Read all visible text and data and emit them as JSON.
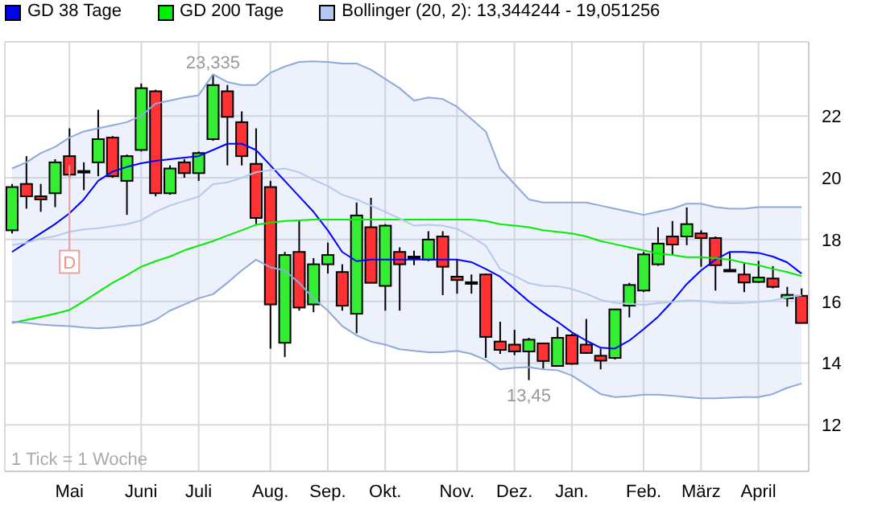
{
  "chart_data": {
    "type": "candlestick",
    "categories": [
      null,
      null,
      null,
      null,
      "Mai",
      null,
      null,
      null,
      null,
      "Juni",
      null,
      null,
      null,
      "Juli",
      null,
      null,
      null,
      null,
      "Aug.",
      null,
      null,
      null,
      "Sep.",
      null,
      null,
      null,
      "Okt.",
      null,
      null,
      null,
      null,
      "Nov.",
      null,
      null,
      null,
      "Dez.",
      null,
      null,
      null,
      "Jan.",
      null,
      null,
      null,
      null,
      "Feb.",
      null,
      null,
      null,
      "März",
      null,
      null,
      null,
      "April",
      null,
      null,
      null
    ],
    "series": [
      {
        "type": "candlestick",
        "colors": [
          "#33ee33",
          "#ff3333",
          "#ff3333",
          "#33ee33",
          "#ff3333",
          "#ff3333",
          "#33ee33",
          "#ff3333",
          "#33ee33",
          "#33ee33",
          "#ff3333",
          "#33ee33",
          "#ff3333",
          "#33ee33",
          "#33ee33",
          "#ff3333",
          "#ff3333",
          "#ff3333",
          "#ff3333",
          "#33ee33",
          "#ff3333",
          "#33ee33",
          "#33ee33",
          "#ff3333",
          "#33ee33",
          "#ff3333",
          "#33ee33",
          "#ff3333",
          "#ff3333",
          "#33ee33",
          "#ff3333",
          "#ff3333",
          "#ff3333",
          "#ff3333",
          "#ff3333",
          "#ff3333",
          "#33ee33",
          "#ff3333",
          "#33ee33",
          "#ff3333",
          "#ff3333",
          "#ff3333",
          "#33ee33",
          "#33ee33",
          "#33ee33",
          "#33ee33",
          "#ff3333",
          "#33ee33",
          "#ff3333",
          "#ff3333",
          "#ff3333",
          "#ff3333",
          "#33ee33",
          "#ff3333",
          "#33ee33",
          "#ff3333"
        ],
        "ohlc": [
          [
            18.3,
            19.8,
            18.2,
            19.7
          ],
          [
            19.8,
            20.7,
            19.0,
            19.4
          ],
          [
            19.4,
            19.8,
            18.9,
            19.3
          ],
          [
            19.5,
            20.6,
            19.05,
            20.5
          ],
          [
            20.7,
            21.6,
            20.0,
            20.1
          ],
          [
            20.22,
            20.5,
            19.6,
            20.2
          ],
          [
            20.5,
            22.2,
            20.05,
            21.25
          ],
          [
            21.3,
            21.35,
            20.0,
            20.05
          ],
          [
            19.9,
            20.75,
            18.8,
            20.7
          ],
          [
            20.9,
            23.05,
            20.85,
            22.9
          ],
          [
            22.8,
            22.85,
            19.4,
            19.5
          ],
          [
            19.5,
            20.4,
            19.45,
            20.3
          ],
          [
            20.5,
            20.6,
            20.0,
            20.15
          ],
          [
            20.15,
            20.85,
            19.9,
            20.8
          ],
          [
            21.25,
            23.335,
            21.2,
            23.0
          ],
          [
            22.8,
            23.0,
            20.4,
            21.97
          ],
          [
            21.8,
            22.15,
            20.4,
            20.7
          ],
          [
            20.45,
            21.6,
            18.5,
            18.7
          ],
          [
            19.7,
            19.9,
            14.47,
            15.9
          ],
          [
            14.66,
            17.6,
            14.2,
            17.5
          ],
          [
            17.6,
            18.6,
            15.7,
            15.8
          ],
          [
            15.9,
            17.4,
            15.65,
            17.2
          ],
          [
            17.2,
            17.9,
            16.9,
            17.5
          ],
          [
            16.95,
            17.2,
            15.7,
            15.86
          ],
          [
            15.6,
            19.2,
            14.97,
            18.78
          ],
          [
            18.4,
            19.35,
            16.6,
            16.6
          ],
          [
            16.5,
            18.5,
            15.7,
            18.45
          ],
          [
            17.6,
            17.75,
            15.7,
            17.2
          ],
          [
            17.45,
            17.64,
            17.17,
            17.4
          ],
          [
            17.35,
            18.27,
            17.3,
            18.0
          ],
          [
            18.1,
            18.27,
            16.2,
            17.12
          ],
          [
            16.8,
            17.35,
            16.25,
            16.69
          ],
          [
            16.62,
            16.87,
            16.25,
            16.6
          ],
          [
            16.87,
            16.9,
            14.17,
            14.85
          ],
          [
            14.7,
            15.34,
            14.3,
            14.43
          ],
          [
            14.6,
            15.08,
            14.26,
            14.38
          ],
          [
            14.38,
            14.82,
            13.45,
            14.76
          ],
          [
            14.64,
            14.65,
            13.82,
            14.07
          ],
          [
            13.91,
            15.17,
            13.91,
            14.82
          ],
          [
            14.9,
            14.95,
            13.95,
            13.98
          ],
          [
            14.6,
            15.43,
            14.3,
            14.33
          ],
          [
            14.24,
            14.47,
            13.8,
            14.08
          ],
          [
            14.17,
            15.76,
            14.12,
            15.74
          ],
          [
            15.86,
            16.6,
            15.48,
            16.53
          ],
          [
            16.35,
            17.6,
            16.3,
            17.52
          ],
          [
            17.2,
            18.4,
            17.15,
            17.87
          ],
          [
            18.1,
            18.6,
            17.52,
            17.84
          ],
          [
            18.1,
            19.04,
            17.82,
            18.5
          ],
          [
            18.2,
            18.3,
            17.12,
            18.05
          ],
          [
            18.05,
            18.1,
            16.35,
            17.17
          ],
          [
            17.02,
            17.6,
            17.0,
            17.0
          ],
          [
            16.87,
            17.26,
            16.3,
            16.61
          ],
          [
            16.63,
            17.31,
            16.6,
            16.77
          ],
          [
            16.74,
            17.14,
            16.42,
            16.47
          ],
          [
            16.1,
            16.47,
            15.83,
            16.21
          ],
          [
            16.18,
            16.42,
            15.3,
            15.3
          ]
        ]
      },
      {
        "type": "line",
        "name": "GD 38 Tage",
        "color": "#0000ff",
        "values": [
          17.6,
          17.9,
          18.2,
          18.5,
          18.85,
          19.3,
          19.9,
          20.2,
          20.35,
          20.47,
          20.55,
          20.6,
          20.65,
          20.7,
          20.9,
          21.1,
          21.1,
          20.9,
          20.4,
          19.9,
          19.4,
          18.9,
          18.3,
          17.6,
          17.3,
          17.35,
          17.35,
          17.35,
          17.35,
          17.35,
          17.35,
          17.35,
          17.27,
          17.05,
          16.8,
          16.4,
          16.0,
          15.65,
          15.34,
          15.0,
          14.73,
          14.5,
          14.47,
          14.73,
          15.1,
          15.5,
          16.0,
          16.56,
          17.0,
          17.35,
          17.6,
          17.6,
          17.57,
          17.45,
          17.26,
          16.9
        ]
      },
      {
        "type": "line",
        "name": "GD 200 Tage",
        "color": "#00ee00",
        "values": [
          15.3,
          15.4,
          15.5,
          15.6,
          15.72,
          16.0,
          16.3,
          16.6,
          16.85,
          17.12,
          17.3,
          17.45,
          17.65,
          17.8,
          17.95,
          18.13,
          18.3,
          18.48,
          18.55,
          18.6,
          18.62,
          18.65,
          18.65,
          18.65,
          18.65,
          18.65,
          18.65,
          18.65,
          18.65,
          18.65,
          18.65,
          18.65,
          18.65,
          18.6,
          18.5,
          18.45,
          18.4,
          18.3,
          18.25,
          18.2,
          18.1,
          17.95,
          17.85,
          17.75,
          17.65,
          17.55,
          17.5,
          17.43,
          17.43,
          17.4,
          17.35,
          17.25,
          17.17,
          17.05,
          16.95,
          16.82
        ]
      },
      {
        "type": "line",
        "color": "#8eaadb",
        "values": [
          15.34,
          15.3,
          15.25,
          15.22,
          15.2,
          15.15,
          15.13,
          15.15,
          15.2,
          15.23,
          15.4,
          15.7,
          15.9,
          16.1,
          16.23,
          16.6,
          17.0,
          17.35,
          17.1,
          17.0,
          16.6,
          16.1,
          15.7,
          15.2,
          14.9,
          14.7,
          14.6,
          14.45,
          14.4,
          14.35,
          14.35,
          14.4,
          14.3,
          14.1,
          13.8,
          13.85,
          13.87,
          13.8,
          13.77,
          13.6,
          13.3,
          13.0,
          12.9,
          12.93,
          12.98,
          12.98,
          12.95,
          12.9,
          12.86,
          12.86,
          12.88,
          12.9,
          12.9,
          13.0,
          13.2,
          13.34
        ]
      },
      {
        "type": "line",
        "color": "#8eaadb",
        "values": [
          20.3,
          20.5,
          20.8,
          21.0,
          21.3,
          21.5,
          21.6,
          21.7,
          21.8,
          22.0,
          22.4,
          22.5,
          22.6,
          22.67,
          23.35,
          23.1,
          23.0,
          23.0,
          23.4,
          23.6,
          23.75,
          23.77,
          23.75,
          23.7,
          23.7,
          23.5,
          23.2,
          22.9,
          22.5,
          22.6,
          22.55,
          22.3,
          21.9,
          21.5,
          20.3,
          19.8,
          19.3,
          19.2,
          19.2,
          19.2,
          19.2,
          19.1,
          19.0,
          18.9,
          18.8,
          18.9,
          19.0,
          19.16,
          19.16,
          19.05,
          19.0,
          19.0,
          19.05,
          19.05,
          19.05,
          19.05
        ]
      },
      {
        "type": "line",
        "name": "Bollinger (20, 2): 13,344244 - 19,051256",
        "color": "#b4c9ef",
        "values": [
          17.82,
          17.9,
          18.03,
          18.11,
          18.25,
          18.33,
          18.37,
          18.43,
          18.5,
          18.62,
          18.9,
          19.1,
          19.25,
          19.39,
          19.79,
          19.85,
          20.0,
          20.18,
          20.25,
          20.3,
          20.18,
          19.94,
          19.73,
          19.45,
          19.3,
          19.1,
          18.9,
          18.68,
          18.45,
          18.48,
          18.45,
          18.35,
          18.1,
          17.8,
          17.05,
          16.83,
          16.59,
          16.5,
          16.49,
          16.4,
          16.25,
          16.05,
          15.95,
          15.92,
          15.89,
          15.94,
          15.98,
          16.03,
          16.01,
          15.96,
          15.94,
          15.95,
          15.98,
          16.03,
          16.13,
          16.2
        ],
        "lower": [
          15.34,
          15.3,
          15.25,
          15.22,
          15.2,
          15.15,
          15.13,
          15.15,
          15.2,
          15.23,
          15.4,
          15.7,
          15.9,
          16.1,
          16.23,
          16.6,
          17.0,
          17.35,
          17.1,
          17.0,
          16.6,
          16.1,
          15.7,
          15.2,
          14.9,
          14.7,
          14.6,
          14.45,
          14.4,
          14.35,
          14.35,
          14.4,
          14.3,
          14.1,
          13.8,
          13.85,
          13.87,
          13.8,
          13.77,
          13.6,
          13.3,
          13.0,
          12.9,
          12.93,
          12.98,
          12.98,
          12.95,
          12.9,
          12.86,
          12.86,
          12.88,
          12.9,
          12.9,
          13.0,
          13.2,
          13.34
        ],
        "upper": [
          20.3,
          20.5,
          20.8,
          21.0,
          21.3,
          21.5,
          21.6,
          21.7,
          21.8,
          22.0,
          22.4,
          22.5,
          22.6,
          22.67,
          23.35,
          23.1,
          23.0,
          23.0,
          23.4,
          23.6,
          23.75,
          23.77,
          23.75,
          23.7,
          23.7,
          23.5,
          23.2,
          22.9,
          22.5,
          22.6,
          22.55,
          22.3,
          21.9,
          21.5,
          20.3,
          19.8,
          19.3,
          19.2,
          19.2,
          19.2,
          19.2,
          19.1,
          19.0,
          18.9,
          18.8,
          18.9,
          19.0,
          19.16,
          19.16,
          19.05,
          19.0,
          19.0,
          19.05,
          19.05,
          19.05,
          19.05
        ]
      }
    ],
    "ylim": [
      10.5,
      24.4
    ],
    "yticks": [
      12,
      14,
      16,
      18,
      20,
      22
    ],
    "grid": true,
    "legend": "top left",
    "annotations": [
      {
        "text": "23,335",
        "y": 23.335
      },
      {
        "text": "13,45",
        "y": 13.45
      },
      {
        "text": "D",
        "y": 17.28
      },
      "1 Tick = 1 Woche"
    ]
  }
}
